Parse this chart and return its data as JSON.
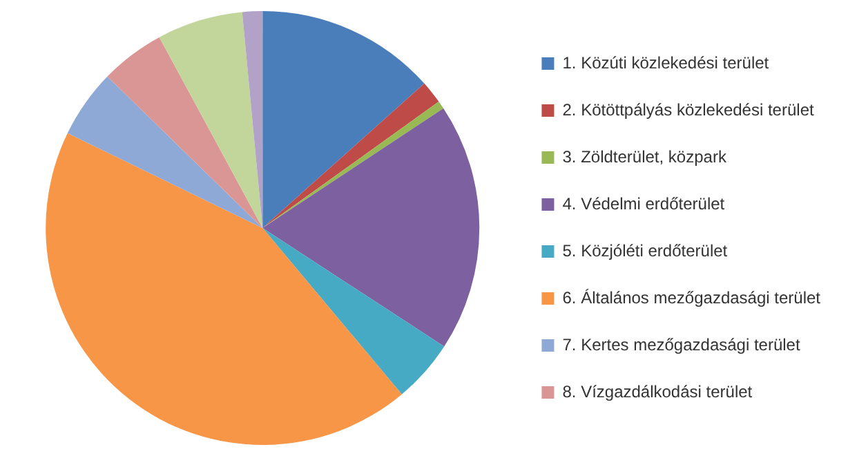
{
  "chart_data": {
    "type": "pie",
    "categories": [
      "1. Közúti közlekedési terület",
      "2. Kötöttpályás közlekedési terület",
      "3. Zöldterület, közpark",
      "4. Védelmi erdőterület",
      "5. Közjóléti erdőterület",
      "6. Általános mezőgazdasági terület",
      "7. Kertes mezőgazdasági terület",
      "8. Vízgazdálkodási terület",
      null,
      null
    ],
    "values": [
      13.4,
      1.7,
      0.6,
      18.5,
      4.7,
      43.3,
      5.1,
      4.8,
      6.4,
      1.5
    ],
    "colors": [
      "#4a7ebb",
      "#be4b48",
      "#98b954",
      "#7d60a0",
      "#46aac5",
      "#f79646",
      "#8fa9d6",
      "#d99694",
      "#c2d69b",
      "#b3a2c7"
    ],
    "legend": "right"
  }
}
